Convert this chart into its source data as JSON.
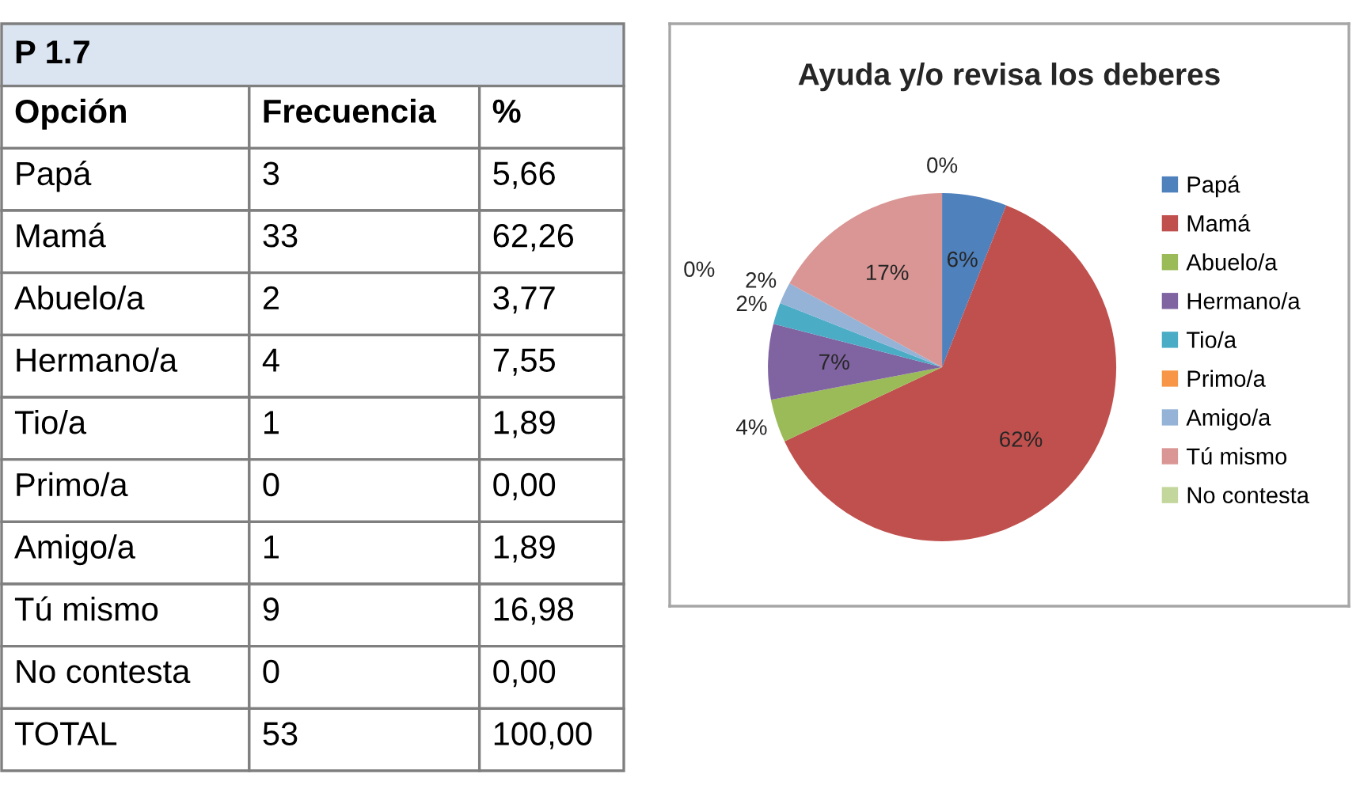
{
  "chart_data": [
    {
      "type": "other",
      "title": "P 1.7",
      "xlabel": "Opción",
      "categories": [
        "Papá",
        "Mamá",
        "Abuelo/a",
        "Hermano/a",
        "Tio/a",
        "Primo/a",
        "Amigo/a",
        "Tú mismo",
        "No contesta",
        "TOTAL"
      ],
      "series": [
        {
          "name": "Frecuencia",
          "values": [
            3,
            33,
            2,
            4,
            1,
            0,
            1,
            9,
            0,
            53
          ]
        },
        {
          "name": "%",
          "values": [
            5.66,
            62.26,
            3.77,
            7.55,
            1.89,
            0.0,
            1.89,
            16.98,
            0.0,
            100.0
          ],
          "value_labels": [
            "5,66",
            "62,26",
            "3,77",
            "7,55",
            "1,89",
            "0,00",
            "1,89",
            "16,98",
            "0,00",
            "100,00"
          ]
        }
      ],
      "data_labels": true
    },
    {
      "type": "pie",
      "title": "Ayuda y/o revisa los deberes",
      "categories": [
        "Papá",
        "Mamá",
        "Abuelo/a",
        "Hermano/a",
        "Tio/a",
        "Primo/a",
        "Amigo/a",
        "Tú mismo",
        "No contesta"
      ],
      "values": [
        6,
        62,
        4,
        7,
        2,
        0,
        2,
        17,
        0
      ],
      "colors": [
        "#4f81bd",
        "#c0504d",
        "#9bbb59",
        "#8064a2",
        "#4bacc6",
        "#f79646",
        "#95b3d7",
        "#d99694",
        "#c3d69b"
      ],
      "value_labels": [
        "6%",
        "62%",
        "4%",
        "7%",
        "2%",
        "0%",
        "2%",
        "17%",
        "0%"
      ],
      "legend": "right"
    }
  ]
}
